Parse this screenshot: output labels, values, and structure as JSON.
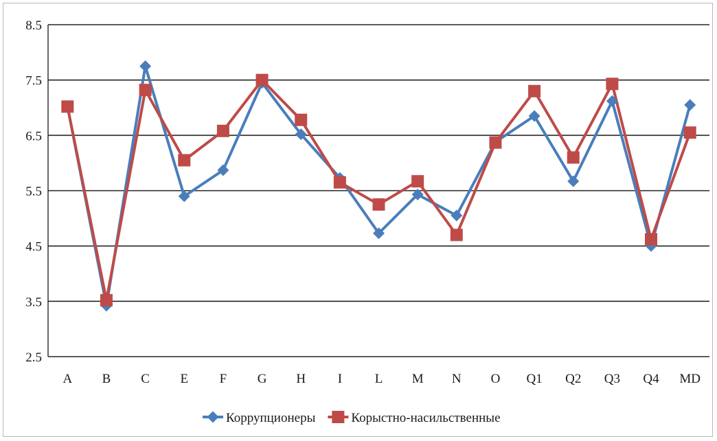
{
  "chart_data": {
    "type": "line",
    "categories": [
      "A",
      "B",
      "C",
      "E",
      "F",
      "G",
      "H",
      "I",
      "L",
      "M",
      "N",
      "O",
      "Q1",
      "Q2",
      "Q3",
      "Q4",
      "MD"
    ],
    "series": [
      {
        "name": "Коррупционеры",
        "color": "#4a7ebb",
        "marker": "diamond",
        "values": [
          7.02,
          3.42,
          7.75,
          5.4,
          5.87,
          7.45,
          6.52,
          5.73,
          4.73,
          5.43,
          5.05,
          6.38,
          6.85,
          5.67,
          7.12,
          4.5,
          7.05
        ]
      },
      {
        "name": "Корыстно-насильственные",
        "color": "#be4b48",
        "marker": "square",
        "values": [
          7.02,
          3.52,
          7.32,
          6.05,
          6.58,
          7.5,
          6.78,
          5.65,
          5.25,
          5.67,
          4.7,
          6.37,
          7.3,
          6.1,
          7.43,
          4.62,
          6.55
        ]
      }
    ],
    "y_ticks": [
      "8.5",
      "7.5",
      "6.5",
      "5.5",
      "4.5",
      "3.5",
      "2.5"
    ],
    "ylim": [
      2.5,
      8.5
    ],
    "title": "",
    "xlabel": "",
    "ylabel": "",
    "grid": "horizontal",
    "legend_position": "bottom"
  }
}
